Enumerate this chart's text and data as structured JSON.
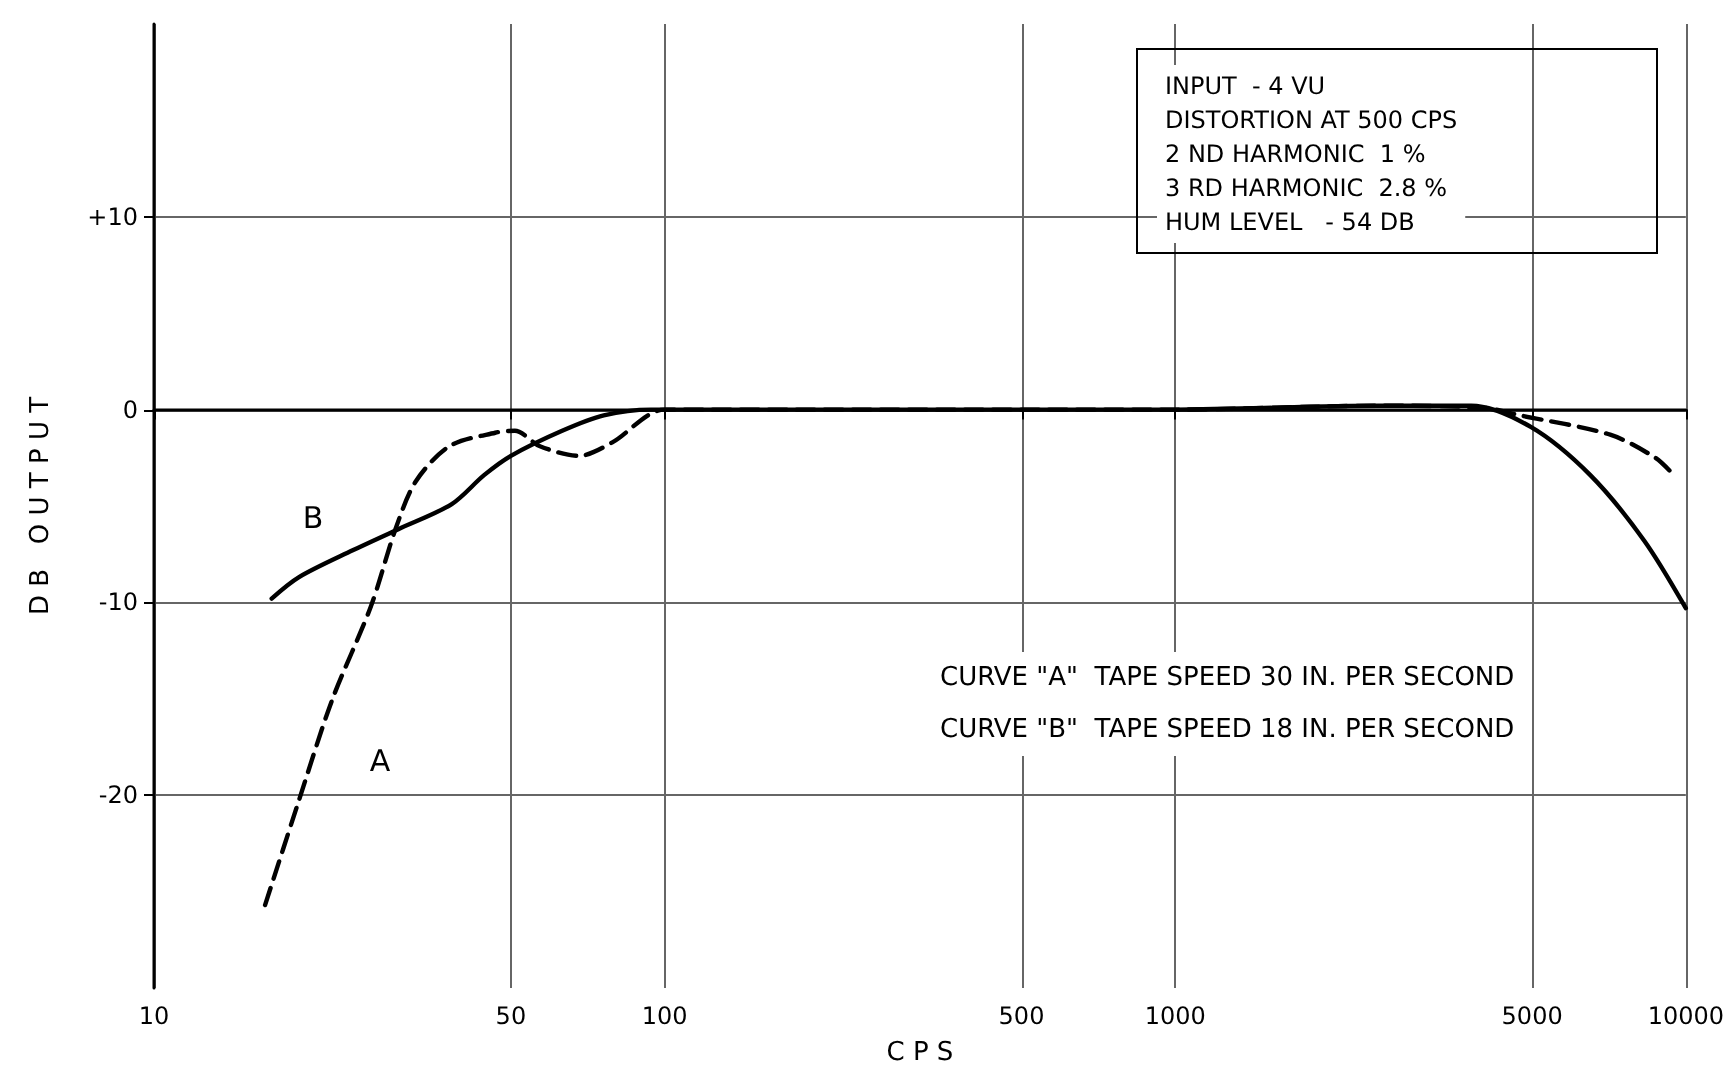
{
  "chart_data": {
    "type": "line",
    "xlabel": "C P S",
    "ylabel": "D B   O U T P U T",
    "log": "x",
    "grid": true,
    "marker": "none",
    "xlim": [
      10,
      10000
    ],
    "xticks": [
      10,
      50,
      100,
      500,
      1000,
      5000,
      10000
    ],
    "ylim": [
      -30,
      20
    ],
    "yticks": [
      {
        "value": -20,
        "label": "-20"
      },
      {
        "value": -10,
        "label": "-10"
      },
      {
        "value": 0,
        "label": "0"
      },
      {
        "value": 10,
        "label": "+10"
      }
    ],
    "series": [
      {
        "name": "A",
        "color": "#000000",
        "line_style": "dashed",
        "x": [
          16.5,
          19.1,
          22.3,
          26.6,
          29.8,
          32.6,
          37.9,
          46.6,
          50.9,
          57,
          68,
          79,
          100,
          1000,
          2500,
          4000,
          4740,
          7110,
          8720,
          9400
        ],
        "values": [
          -25.7,
          -20.5,
          -15.1,
          -10.2,
          -6.1,
          -3.7,
          -1.9,
          -1.2,
          -1.1,
          -1.9,
          -2.4,
          -1.7,
          0,
          0,
          0.2,
          0.1,
          -0.3,
          -1.3,
          -2.5,
          -3.3
        ]
      },
      {
        "name": "B",
        "color": "#000000",
        "line_style": "solid",
        "x": [
          17,
          19.2,
          24.5,
          30.1,
          38.3,
          44.3,
          50,
          63,
          76,
          94,
          1000,
          2500,
          3800,
          4970,
          6500,
          8290,
          10000
        ],
        "values": [
          -9.8,
          -8.7,
          -7.3,
          -6.2,
          -4.9,
          -3.4,
          -2.4,
          -1.1,
          -0.3,
          0,
          0,
          0.2,
          0.2,
          -0.9,
          -3.4,
          -6.8,
          -10.3
        ]
      }
    ],
    "annotations": [
      "INPUT  - 4 VU",
      "DISTORTION AT 500 CPS",
      "2 ND HARMONIC  1 %",
      "3 RD HARMONIC  2.8 %",
      "HUM LEVEL   - 54 DB",
      "CURVE \"A\"  TAPE SPEED 30 IN. PER SECOND",
      "CURVE \"B\"  TAPE SPEED 18 IN. PER SECOND"
    ]
  }
}
